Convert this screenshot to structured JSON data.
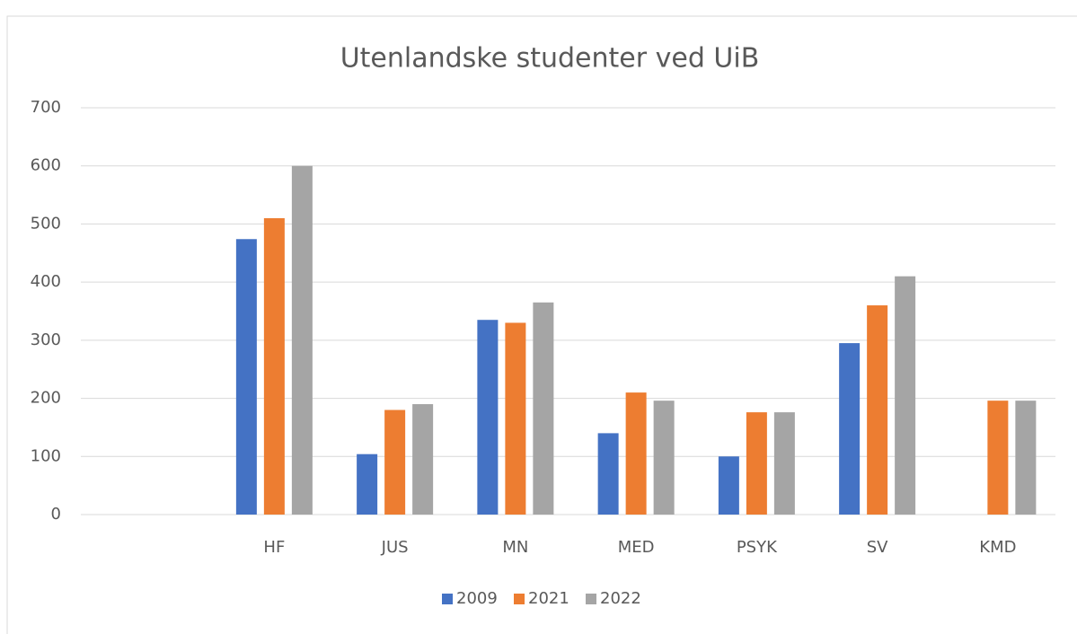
{
  "chart_data": {
    "type": "bar",
    "title": "Utenlandske studenter ved UiB",
    "categories": [
      null,
      "HF",
      "JUS",
      "MN",
      "MED",
      "PSYK",
      "SV",
      "KMD"
    ],
    "series": [
      {
        "name": "2009",
        "color": "#4472c4",
        "values": [
          null,
          474,
          104,
          335,
          140,
          100,
          295,
          null
        ]
      },
      {
        "name": "2021",
        "color": "#ed7d31",
        "values": [
          null,
          510,
          180,
          330,
          210,
          176,
          360,
          196
        ]
      },
      {
        "name": "2022",
        "color": "#a5a5a5",
        "values": [
          null,
          600,
          190,
          365,
          196,
          176,
          410,
          196
        ]
      }
    ],
    "ylim": [
      0,
      700
    ],
    "yticks": [
      0,
      100,
      200,
      300,
      400,
      500,
      600,
      700
    ],
    "grid": true,
    "legend": "bottom"
  }
}
